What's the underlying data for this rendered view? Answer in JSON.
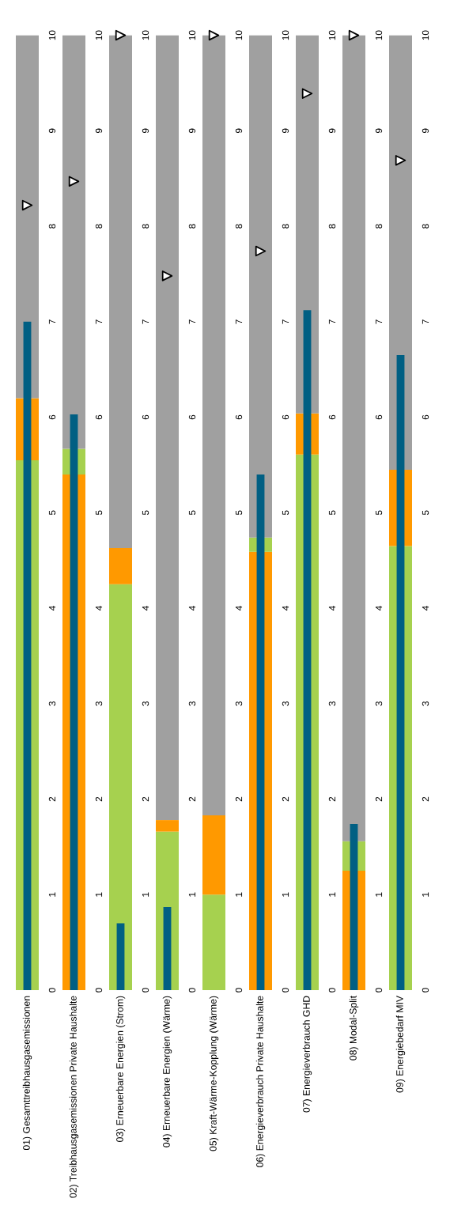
{
  "chart_data": [
    {
      "type": "bar",
      "categories": [
        "01) Gesamttreibhausgasemissionen"
      ],
      "ylim": [
        0,
        10
      ],
      "yticks": [
        0,
        1,
        2,
        3,
        4,
        5,
        6,
        7,
        8,
        9,
        10
      ],
      "bands": [
        {
          "axis": "y",
          "from": 0,
          "to": 5.55,
          "color": "#a6d14f"
        },
        {
          "axis": "y",
          "from": 5.55,
          "to": 6.2,
          "color": "#ff9900"
        },
        {
          "axis": "y",
          "from": 6.2,
          "to": 10,
          "color": "#a0a0a0"
        }
      ],
      "series": [
        {
          "color": "#005f83",
          "values": [
            7.0
          ]
        },
        {
          "type": "scatter",
          "color": "#ffffff",
          "marker": "triangle",
          "values": [
            8.22
          ]
        }
      ]
    },
    {
      "type": "bar",
      "categories": [
        "02) Treibhausgasemissionen Private Haushalte"
      ],
      "ylim": [
        0,
        10
      ],
      "yticks": [
        0,
        1,
        2,
        3,
        4,
        5,
        6,
        7,
        8,
        9,
        10
      ],
      "bands": [
        {
          "axis": "y",
          "from": 0,
          "to": 5.4,
          "color": "#ff9900"
        },
        {
          "axis": "y",
          "from": 5.4,
          "to": 5.67,
          "color": "#a6d14f"
        },
        {
          "axis": "y",
          "from": 5.67,
          "to": 10,
          "color": "#a0a0a0"
        }
      ],
      "series": [
        {
          "color": "#005f83",
          "values": [
            6.03
          ]
        },
        {
          "type": "scatter",
          "color": "#ffffff",
          "marker": "triangle",
          "values": [
            8.47
          ]
        }
      ]
    },
    {
      "type": "bar",
      "categories": [
        "03) Erneuerbare Energien (Strom)"
      ],
      "ylim": [
        0,
        10
      ],
      "yticks": [
        0,
        1,
        2,
        3,
        4,
        5,
        6,
        7,
        8,
        9,
        10
      ],
      "bands": [
        {
          "axis": "y",
          "from": 0,
          "to": 4.25,
          "color": "#a6d14f"
        },
        {
          "axis": "y",
          "from": 4.25,
          "to": 4.63,
          "color": "#ff9900"
        },
        {
          "axis": "y",
          "from": 4.63,
          "to": 10,
          "color": "#a0a0a0"
        }
      ],
      "series": [
        {
          "color": "#005f83",
          "values": [
            0.7
          ]
        },
        {
          "type": "scatter",
          "color": "#ffffff",
          "marker": "triangle",
          "values": [
            10
          ]
        }
      ]
    },
    {
      "type": "bar",
      "categories": [
        "04) Erneuerbare Energien (Wärme)"
      ],
      "ylim": [
        0,
        10
      ],
      "yticks": [
        0,
        1,
        2,
        3,
        4,
        5,
        6,
        7,
        8,
        9,
        10
      ],
      "bands": [
        {
          "axis": "y",
          "from": 0,
          "to": 1.66,
          "color": "#a6d14f"
        },
        {
          "axis": "y",
          "from": 1.66,
          "to": 1.78,
          "color": "#ff9900"
        },
        {
          "axis": "y",
          "from": 1.78,
          "to": 10,
          "color": "#a0a0a0"
        }
      ],
      "series": [
        {
          "color": "#005f83",
          "values": [
            0.87
          ]
        },
        {
          "type": "scatter",
          "color": "#ffffff",
          "marker": "triangle",
          "values": [
            7.48
          ]
        }
      ]
    },
    {
      "type": "bar",
      "categories": [
        "05) Kraft-Wärme-Kopplung (Wärme)"
      ],
      "ylim": [
        0,
        10
      ],
      "yticks": [
        0,
        1,
        2,
        3,
        4,
        5,
        6,
        7,
        8,
        9,
        10
      ],
      "bands": [
        {
          "axis": "y",
          "from": 0,
          "to": 1.0,
          "color": "#a6d14f"
        },
        {
          "axis": "y",
          "from": 1.0,
          "to": 1.83,
          "color": "#ff9900"
        },
        {
          "axis": "y",
          "from": 1.83,
          "to": 10,
          "color": "#a0a0a0"
        }
      ],
      "series": [
        {
          "type": "scatter",
          "color": "#ffffff",
          "marker": "triangle",
          "values": [
            10
          ]
        }
      ]
    },
    {
      "type": "bar",
      "categories": [
        "06) Energieverbrauch Private Haushalte"
      ],
      "ylim": [
        0,
        10
      ],
      "yticks": [
        0,
        1,
        2,
        3,
        4,
        5,
        6,
        7,
        8,
        9,
        10
      ],
      "bands": [
        {
          "axis": "y",
          "from": 0,
          "to": 4.59,
          "color": "#ff9900"
        },
        {
          "axis": "y",
          "from": 4.59,
          "to": 4.74,
          "color": "#a6d14f"
        },
        {
          "axis": "y",
          "from": 4.74,
          "to": 10,
          "color": "#a0a0a0"
        }
      ],
      "series": [
        {
          "color": "#005f83",
          "values": [
            5.4
          ]
        },
        {
          "type": "scatter",
          "color": "#ffffff",
          "marker": "triangle",
          "values": [
            7.74
          ]
        }
      ]
    },
    {
      "type": "bar",
      "categories": [
        "07) Energieverbrauch GHD"
      ],
      "ylim": [
        0,
        10
      ],
      "yticks": [
        0,
        1,
        2,
        3,
        4,
        5,
        6,
        7,
        8,
        9,
        10
      ],
      "bands": [
        {
          "axis": "y",
          "from": 0,
          "to": 5.61,
          "color": "#a6d14f"
        },
        {
          "axis": "y",
          "from": 5.61,
          "to": 6.04,
          "color": "#ff9900"
        },
        {
          "axis": "y",
          "from": 6.04,
          "to": 10,
          "color": "#a0a0a0"
        }
      ],
      "series": [
        {
          "color": "#005f83",
          "values": [
            7.12
          ]
        },
        {
          "type": "scatter",
          "color": "#ffffff",
          "marker": "triangle",
          "values": [
            9.39
          ]
        }
      ]
    },
    {
      "type": "bar",
      "categories": [
        "08) Modal-Split"
      ],
      "ylim": [
        0,
        10
      ],
      "yticks": [
        0,
        1,
        2,
        3,
        4,
        5,
        6,
        7,
        8,
        9,
        10
      ],
      "bands": [
        {
          "axis": "y",
          "from": 0,
          "to": 1.25,
          "color": "#ff9900"
        },
        {
          "axis": "y",
          "from": 1.25,
          "to": 1.56,
          "color": "#a6d14f"
        },
        {
          "axis": "y",
          "from": 1.56,
          "to": 10,
          "color": "#a0a0a0"
        }
      ],
      "series": [
        {
          "color": "#005f83",
          "values": [
            1.74
          ]
        },
        {
          "type": "scatter",
          "color": "#ffffff",
          "marker": "triangle",
          "values": [
            10
          ]
        }
      ]
    },
    {
      "type": "bar",
      "categories": [
        "09) Energiebedarf MIV"
      ],
      "ylim": [
        0,
        10
      ],
      "yticks": [
        0,
        1,
        2,
        3,
        4,
        5,
        6,
        7,
        8,
        9,
        10
      ],
      "bands": [
        {
          "axis": "y",
          "from": 0,
          "to": 4.65,
          "color": "#a6d14f"
        },
        {
          "axis": "y",
          "from": 4.65,
          "to": 5.45,
          "color": "#ff9900"
        },
        {
          "axis": "y",
          "from": 5.45,
          "to": 10,
          "color": "#a0a0a0"
        }
      ],
      "series": [
        {
          "color": "#005f83",
          "values": [
            6.65
          ]
        },
        {
          "type": "scatter",
          "color": "#ffffff",
          "marker": "triangle",
          "values": [
            8.69
          ]
        }
      ]
    }
  ]
}
